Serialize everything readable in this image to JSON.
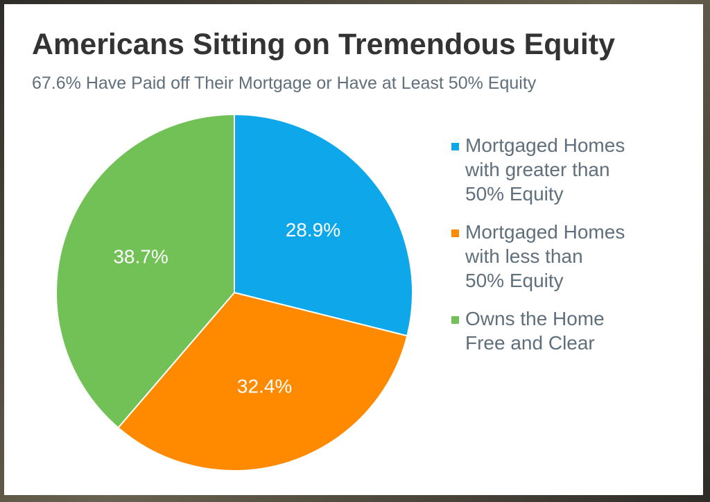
{
  "chart_data": {
    "type": "pie",
    "title": "Americans Sitting on Tremendous Equity",
    "subtitle": "67.6% Have Paid off Their Mortgage or Have at Least 50% Equity",
    "slices": [
      {
        "label": "Mortgaged Homes\nwith greater than\n50% Equity",
        "value": 28.9,
        "display": "28.9%",
        "color": "#0ea8ea"
      },
      {
        "label": "Mortgaged Homes\nwith less than\n50% Equity",
        "value": 32.4,
        "display": "32.4%",
        "color": "#ff8a00"
      },
      {
        "label": "Owns the Home\nFree and Clear",
        "value": 38.7,
        "display": "38.7%",
        "color": "#72c156"
      }
    ],
    "start_angle_deg": 0,
    "direction": "clockwise",
    "legend_position": "right"
  }
}
